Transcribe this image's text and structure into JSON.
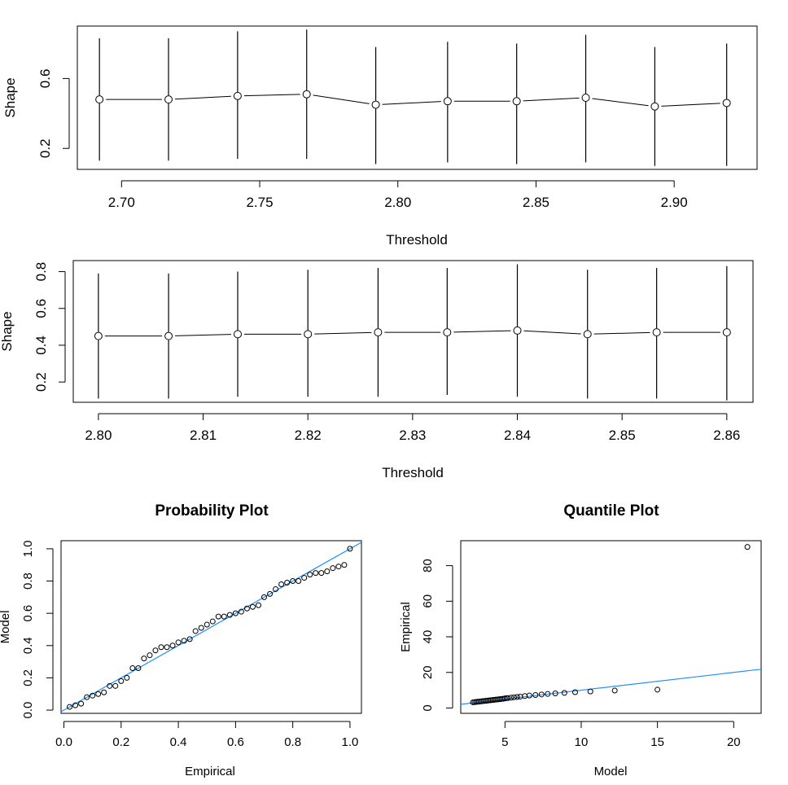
{
  "colors": {
    "reference_line": "#1e90ff",
    "marks": "#000000",
    "background": "#ffffff"
  },
  "chart_data": [
    {
      "type": "scatter",
      "title": "",
      "xlabel": "Threshold",
      "ylabel": "Shape",
      "xlim": [
        2.684,
        2.93
      ],
      "ylim": [
        0.08,
        0.9
      ],
      "x_ticks": [
        "2.70",
        "2.75",
        "2.80",
        "2.85",
        "2.90"
      ],
      "y_ticks": [
        "0.2",
        "0.6"
      ],
      "error_bars": true,
      "connected": true,
      "x": [
        2.692,
        2.717,
        2.742,
        2.767,
        2.792,
        2.818,
        2.843,
        2.868,
        2.893,
        2.919
      ],
      "y": [
        0.48,
        0.48,
        0.5,
        0.51,
        0.45,
        0.47,
        0.47,
        0.49,
        0.44,
        0.46
      ],
      "lower": [
        0.13,
        0.13,
        0.14,
        0.14,
        0.11,
        0.12,
        0.11,
        0.12,
        0.1,
        0.1
      ],
      "upper": [
        0.83,
        0.83,
        0.87,
        0.88,
        0.78,
        0.81,
        0.8,
        0.85,
        0.78,
        0.8
      ]
    },
    {
      "type": "scatter",
      "title": "",
      "xlabel": "Threshold",
      "ylabel": "Shape",
      "xlim": [
        2.7976,
        2.8625
      ],
      "ylim": [
        0.09,
        0.86
      ],
      "x_ticks": [
        "2.80",
        "2.81",
        "2.82",
        "2.83",
        "2.84",
        "2.85",
        "2.86"
      ],
      "y_ticks": [
        "0.2",
        "0.4",
        "0.6",
        "0.8"
      ],
      "error_bars": true,
      "connected": true,
      "x": [
        2.8,
        2.8067,
        2.8133,
        2.82,
        2.8267,
        2.8333,
        2.84,
        2.8467,
        2.8533,
        2.86
      ],
      "y": [
        0.45,
        0.45,
        0.46,
        0.46,
        0.47,
        0.47,
        0.48,
        0.46,
        0.47,
        0.47
      ],
      "lower": [
        0.11,
        0.11,
        0.12,
        0.12,
        0.12,
        0.13,
        0.12,
        0.11,
        0.11,
        0.1
      ],
      "upper": [
        0.79,
        0.79,
        0.8,
        0.81,
        0.82,
        0.82,
        0.84,
        0.81,
        0.82,
        0.83
      ]
    },
    {
      "type": "scatter",
      "title": "Probability Plot",
      "xlabel": "Empirical",
      "ylabel": "Model",
      "xlim": [
        -0.01,
        1.04
      ],
      "ylim": [
        -0.02,
        1.05
      ],
      "x_ticks": [
        "0.0",
        "0.2",
        "0.4",
        "0.6",
        "0.8",
        "1.0"
      ],
      "y_ticks": [
        "0.0",
        "0.2",
        "0.4",
        "0.6",
        "0.8",
        "1.0"
      ],
      "reference_line": {
        "intercept": 0,
        "slope": 1
      },
      "x": [
        0.02,
        0.04,
        0.06,
        0.08,
        0.1,
        0.12,
        0.14,
        0.16,
        0.18,
        0.2,
        0.22,
        0.24,
        0.26,
        0.28,
        0.3,
        0.32,
        0.34,
        0.36,
        0.38,
        0.4,
        0.42,
        0.44,
        0.46,
        0.48,
        0.5,
        0.52,
        0.54,
        0.56,
        0.58,
        0.6,
        0.62,
        0.64,
        0.66,
        0.68,
        0.7,
        0.72,
        0.74,
        0.76,
        0.78,
        0.8,
        0.82,
        0.84,
        0.86,
        0.88,
        0.9,
        0.92,
        0.94,
        0.96,
        0.98,
        1.0
      ],
      "y": [
        0.02,
        0.03,
        0.04,
        0.08,
        0.09,
        0.1,
        0.11,
        0.15,
        0.15,
        0.18,
        0.2,
        0.26,
        0.26,
        0.32,
        0.34,
        0.37,
        0.39,
        0.39,
        0.4,
        0.42,
        0.43,
        0.44,
        0.49,
        0.51,
        0.53,
        0.55,
        0.58,
        0.58,
        0.59,
        0.6,
        0.61,
        0.63,
        0.64,
        0.65,
        0.7,
        0.72,
        0.75,
        0.78,
        0.79,
        0.8,
        0.8,
        0.82,
        0.84,
        0.85,
        0.85,
        0.86,
        0.88,
        0.89,
        0.9,
        1.0
      ]
    },
    {
      "type": "scatter",
      "title": "Quantile Plot",
      "xlabel": "Model",
      "ylabel": "Empirical",
      "xlim": [
        2.1,
        21.8
      ],
      "ylim": [
        -3,
        94
      ],
      "x_ticks": [
        "5",
        "10",
        "15",
        "20"
      ],
      "y_ticks": [
        "0",
        "20",
        "40",
        "60",
        "80"
      ],
      "reference_line": {
        "intercept": 0,
        "slope": 1
      },
      "x": [
        2.9,
        3.0,
        3.1,
        3.2,
        3.3,
        3.4,
        3.5,
        3.6,
        3.7,
        3.8,
        3.9,
        4.0,
        4.1,
        4.2,
        4.3,
        4.4,
        4.5,
        4.6,
        4.7,
        4.8,
        4.9,
        5.0,
        5.1,
        5.2,
        5.4,
        5.6,
        5.8,
        6.0,
        6.3,
        6.6,
        7.0,
        7.4,
        7.8,
        8.3,
        8.9,
        9.6,
        10.6,
        12.2,
        15.0,
        20.9
      ],
      "y": [
        3.2,
        3.3,
        3.4,
        3.5,
        3.6,
        3.7,
        3.8,
        3.9,
        4.0,
        4.1,
        4.2,
        4.3,
        4.4,
        4.5,
        4.6,
        4.7,
        4.8,
        4.9,
        5.0,
        5.1,
        5.2,
        5.4,
        5.5,
        5.6,
        5.8,
        6.0,
        6.2,
        6.4,
        6.7,
        7.0,
        7.3,
        7.6,
        7.9,
        8.2,
        8.5,
        8.9,
        9.3,
        9.8,
        10.3,
        90.5
      ]
    }
  ]
}
